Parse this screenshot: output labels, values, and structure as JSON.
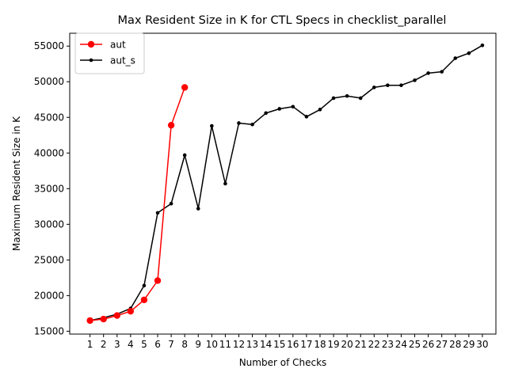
{
  "chart_data": {
    "type": "line",
    "title": "Max Resident Size in K for CTL Specs in checklist_parallel",
    "xlabel": "Number of Checks",
    "ylabel": "Maximum Resident Size in K",
    "xlim": [
      -0.5,
      31
    ],
    "ylim": [
      14600,
      56800
    ],
    "xticks": [
      1,
      2,
      3,
      4,
      5,
      6,
      7,
      8,
      9,
      10,
      11,
      12,
      13,
      14,
      15,
      16,
      17,
      18,
      19,
      20,
      21,
      22,
      23,
      24,
      25,
      26,
      27,
      28,
      29,
      30
    ],
    "yticks": [
      15000,
      20000,
      25000,
      30000,
      35000,
      40000,
      45000,
      50000,
      55000
    ],
    "grid": false,
    "legend_position": "top-left",
    "series": [
      {
        "name": "aut",
        "color": "#ff0000",
        "marker": "large-circle",
        "x": [
          1,
          2,
          3,
          4,
          5,
          6,
          7,
          8
        ],
        "values": [
          16500,
          16700,
          17200,
          17800,
          19400,
          22100,
          43900,
          49200
        ]
      },
      {
        "name": "aut_s",
        "color": "#000000",
        "marker": "small-dot",
        "x": [
          1,
          2,
          3,
          4,
          5,
          6,
          7,
          8,
          9,
          10,
          11,
          12,
          13,
          14,
          15,
          16,
          17,
          18,
          19,
          20,
          21,
          22,
          23,
          24,
          25,
          26,
          27,
          28,
          29,
          30
        ],
        "values": [
          16500,
          16900,
          17400,
          18200,
          21400,
          31600,
          32900,
          39700,
          32200,
          43800,
          35700,
          44200,
          44000,
          45600,
          46200,
          46500,
          45100,
          46100,
          47700,
          48000,
          47700,
          49200,
          49500,
          49500,
          50200,
          51200,
          51400,
          53300,
          54000,
          55100
        ]
      }
    ]
  }
}
